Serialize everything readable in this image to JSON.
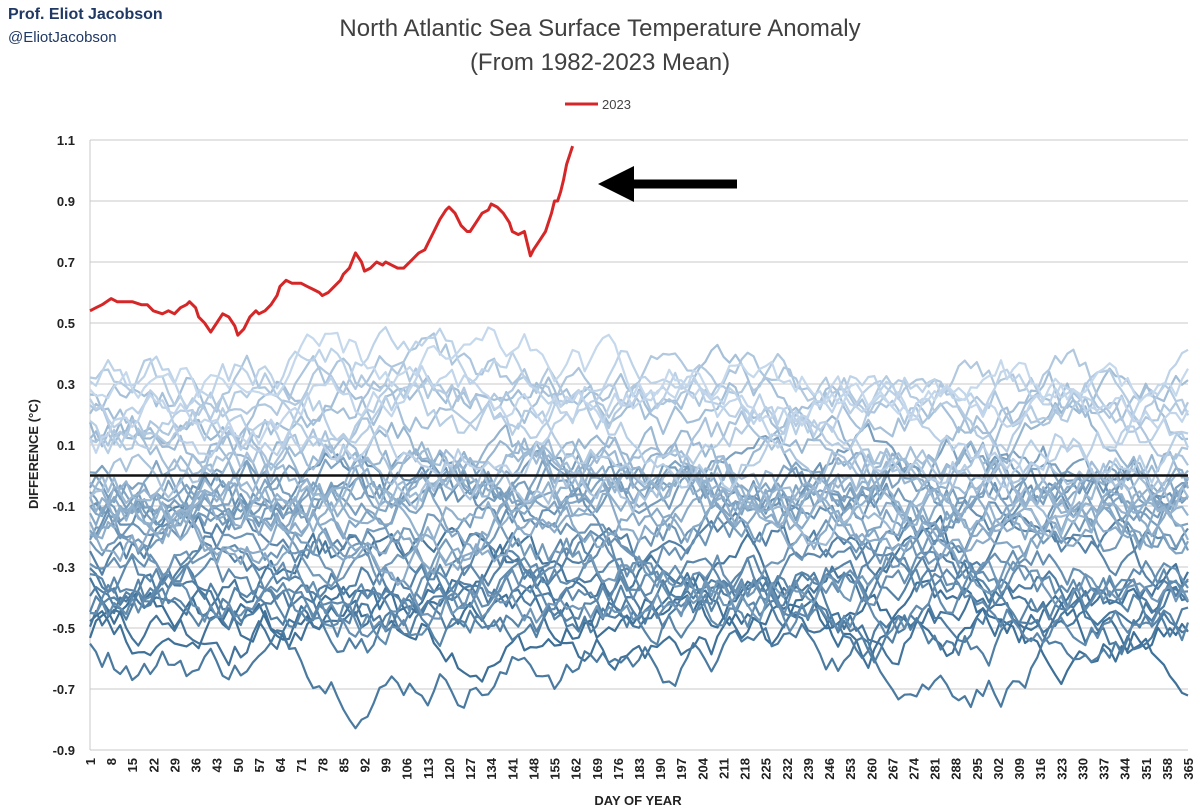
{
  "credit": {
    "name": "Prof. Eliot Jacobson",
    "handle": "@EliotJacobson"
  },
  "chart_data": {
    "type": "line",
    "title": "North Atlantic Sea Surface Temperature Anomaly",
    "subtitle": "(From 1982-2023 Mean)",
    "xlabel": "DAY OF YEAR",
    "ylabel": "DIFFERENCE (°C)",
    "xlim": [
      1,
      365
    ],
    "ylim": [
      -0.9,
      1.1
    ],
    "y_ticks": [
      "1.1",
      "0.9",
      "0.7",
      "0.5",
      "0.3",
      "0.1",
      "-0.1",
      "-0.3",
      "-0.5",
      "-0.7",
      "-0.9"
    ],
    "x_ticks": [
      "1",
      "8",
      "15",
      "22",
      "29",
      "36",
      "43",
      "50",
      "57",
      "64",
      "71",
      "78",
      "85",
      "92",
      "99",
      "106",
      "113",
      "120",
      "127",
      "134",
      "141",
      "148",
      "155",
      "162",
      "169",
      "176",
      "183",
      "190",
      "197",
      "204",
      "211",
      "218",
      "225",
      "232",
      "239",
      "246",
      "253",
      "260",
      "267",
      "274",
      "281",
      "288",
      "295",
      "302",
      "309",
      "316",
      "323",
      "330",
      "337",
      "344",
      "351",
      "358",
      "365"
    ],
    "grid": true,
    "legend": {
      "position": "top-center",
      "entries": [
        "2023"
      ]
    },
    "colors": {
      "highlight": "#d62728",
      "baseline": "#111111",
      "grid": "#c8c8c8",
      "historic_dark": "#3d6f97",
      "historic_light": "#c5d8ec"
    },
    "annotation": "arrow pointing at the end of the 2023 line",
    "zero_line": 0,
    "series": [
      {
        "name": "2023",
        "color": "#d62728",
        "x": [
          1,
          3,
          5,
          8,
          10,
          12,
          15,
          18,
          20,
          22,
          25,
          27,
          29,
          31,
          33,
          34,
          36,
          37,
          39,
          41,
          43,
          45,
          47,
          49,
          50,
          52,
          54,
          56,
          57,
          59,
          61,
          63,
          64,
          66,
          68,
          70,
          71,
          73,
          75,
          77,
          78,
          80,
          82,
          84,
          85,
          87,
          89,
          91,
          92,
          94,
          96,
          98,
          99,
          101,
          103,
          105,
          106,
          108,
          110,
          112,
          113,
          115,
          117,
          119,
          120,
          122,
          124,
          126,
          127,
          129,
          131,
          133,
          134,
          136,
          138,
          140,
          141,
          143,
          145,
          147,
          148,
          150,
          152,
          154,
          155,
          156,
          157,
          158,
          159,
          160,
          161
        ],
        "y": [
          0.54,
          0.55,
          0.56,
          0.58,
          0.57,
          0.57,
          0.57,
          0.56,
          0.56,
          0.54,
          0.53,
          0.54,
          0.53,
          0.55,
          0.56,
          0.57,
          0.55,
          0.52,
          0.5,
          0.47,
          0.5,
          0.53,
          0.52,
          0.49,
          0.46,
          0.48,
          0.52,
          0.54,
          0.53,
          0.54,
          0.56,
          0.59,
          0.62,
          0.64,
          0.63,
          0.63,
          0.63,
          0.62,
          0.61,
          0.6,
          0.59,
          0.6,
          0.62,
          0.64,
          0.66,
          0.68,
          0.73,
          0.7,
          0.67,
          0.68,
          0.7,
          0.69,
          0.7,
          0.69,
          0.68,
          0.68,
          0.69,
          0.71,
          0.73,
          0.74,
          0.76,
          0.8,
          0.84,
          0.87,
          0.88,
          0.86,
          0.82,
          0.8,
          0.8,
          0.83,
          0.86,
          0.87,
          0.89,
          0.88,
          0.86,
          0.83,
          0.8,
          0.79,
          0.8,
          0.72,
          0.74,
          0.77,
          0.8,
          0.86,
          0.9,
          0.9,
          0.93,
          0.97,
          1.02,
          1.05,
          1.08
        ]
      }
    ],
    "background_series_note": "historical years 1982-2022, pale-to-steel-blue lines without labels"
  }
}
